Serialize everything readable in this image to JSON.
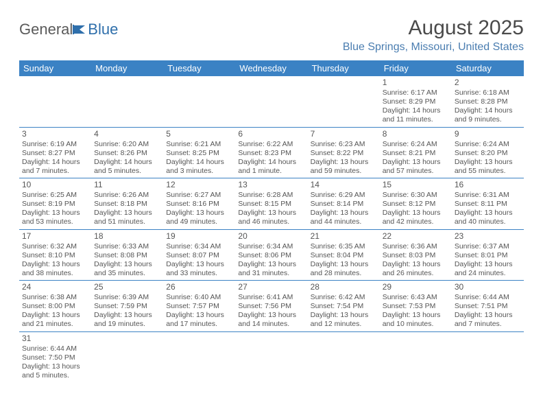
{
  "logo": {
    "general": "General",
    "blue": "Blue"
  },
  "header": {
    "month_title": "August 2025",
    "location": "Blue Springs, Missouri, United States"
  },
  "colors": {
    "header_bg": "#3b82c4",
    "header_text": "#ffffff",
    "grid_line": "#3b82c4",
    "body_text": "#555555",
    "location_text": "#4a7db0"
  },
  "day_headers": [
    "Sunday",
    "Monday",
    "Tuesday",
    "Wednesday",
    "Thursday",
    "Friday",
    "Saturday"
  ],
  "weeks": [
    [
      {
        "empty": true
      },
      {
        "empty": true
      },
      {
        "empty": true
      },
      {
        "empty": true
      },
      {
        "empty": true
      },
      {
        "num": "1",
        "sunrise": "Sunrise: 6:17 AM",
        "sunset": "Sunset: 8:29 PM",
        "daylight1": "Daylight: 14 hours",
        "daylight2": "and 11 minutes."
      },
      {
        "num": "2",
        "sunrise": "Sunrise: 6:18 AM",
        "sunset": "Sunset: 8:28 PM",
        "daylight1": "Daylight: 14 hours",
        "daylight2": "and 9 minutes."
      }
    ],
    [
      {
        "num": "3",
        "sunrise": "Sunrise: 6:19 AM",
        "sunset": "Sunset: 8:27 PM",
        "daylight1": "Daylight: 14 hours",
        "daylight2": "and 7 minutes."
      },
      {
        "num": "4",
        "sunrise": "Sunrise: 6:20 AM",
        "sunset": "Sunset: 8:26 PM",
        "daylight1": "Daylight: 14 hours",
        "daylight2": "and 5 minutes."
      },
      {
        "num": "5",
        "sunrise": "Sunrise: 6:21 AM",
        "sunset": "Sunset: 8:25 PM",
        "daylight1": "Daylight: 14 hours",
        "daylight2": "and 3 minutes."
      },
      {
        "num": "6",
        "sunrise": "Sunrise: 6:22 AM",
        "sunset": "Sunset: 8:23 PM",
        "daylight1": "Daylight: 14 hours",
        "daylight2": "and 1 minute."
      },
      {
        "num": "7",
        "sunrise": "Sunrise: 6:23 AM",
        "sunset": "Sunset: 8:22 PM",
        "daylight1": "Daylight: 13 hours",
        "daylight2": "and 59 minutes."
      },
      {
        "num": "8",
        "sunrise": "Sunrise: 6:24 AM",
        "sunset": "Sunset: 8:21 PM",
        "daylight1": "Daylight: 13 hours",
        "daylight2": "and 57 minutes."
      },
      {
        "num": "9",
        "sunrise": "Sunrise: 6:24 AM",
        "sunset": "Sunset: 8:20 PM",
        "daylight1": "Daylight: 13 hours",
        "daylight2": "and 55 minutes."
      }
    ],
    [
      {
        "num": "10",
        "sunrise": "Sunrise: 6:25 AM",
        "sunset": "Sunset: 8:19 PM",
        "daylight1": "Daylight: 13 hours",
        "daylight2": "and 53 minutes."
      },
      {
        "num": "11",
        "sunrise": "Sunrise: 6:26 AM",
        "sunset": "Sunset: 8:18 PM",
        "daylight1": "Daylight: 13 hours",
        "daylight2": "and 51 minutes."
      },
      {
        "num": "12",
        "sunrise": "Sunrise: 6:27 AM",
        "sunset": "Sunset: 8:16 PM",
        "daylight1": "Daylight: 13 hours",
        "daylight2": "and 49 minutes."
      },
      {
        "num": "13",
        "sunrise": "Sunrise: 6:28 AM",
        "sunset": "Sunset: 8:15 PM",
        "daylight1": "Daylight: 13 hours",
        "daylight2": "and 46 minutes."
      },
      {
        "num": "14",
        "sunrise": "Sunrise: 6:29 AM",
        "sunset": "Sunset: 8:14 PM",
        "daylight1": "Daylight: 13 hours",
        "daylight2": "and 44 minutes."
      },
      {
        "num": "15",
        "sunrise": "Sunrise: 6:30 AM",
        "sunset": "Sunset: 8:12 PM",
        "daylight1": "Daylight: 13 hours",
        "daylight2": "and 42 minutes."
      },
      {
        "num": "16",
        "sunrise": "Sunrise: 6:31 AM",
        "sunset": "Sunset: 8:11 PM",
        "daylight1": "Daylight: 13 hours",
        "daylight2": "and 40 minutes."
      }
    ],
    [
      {
        "num": "17",
        "sunrise": "Sunrise: 6:32 AM",
        "sunset": "Sunset: 8:10 PM",
        "daylight1": "Daylight: 13 hours",
        "daylight2": "and 38 minutes."
      },
      {
        "num": "18",
        "sunrise": "Sunrise: 6:33 AM",
        "sunset": "Sunset: 8:08 PM",
        "daylight1": "Daylight: 13 hours",
        "daylight2": "and 35 minutes."
      },
      {
        "num": "19",
        "sunrise": "Sunrise: 6:34 AM",
        "sunset": "Sunset: 8:07 PM",
        "daylight1": "Daylight: 13 hours",
        "daylight2": "and 33 minutes."
      },
      {
        "num": "20",
        "sunrise": "Sunrise: 6:34 AM",
        "sunset": "Sunset: 8:06 PM",
        "daylight1": "Daylight: 13 hours",
        "daylight2": "and 31 minutes."
      },
      {
        "num": "21",
        "sunrise": "Sunrise: 6:35 AM",
        "sunset": "Sunset: 8:04 PM",
        "daylight1": "Daylight: 13 hours",
        "daylight2": "and 28 minutes."
      },
      {
        "num": "22",
        "sunrise": "Sunrise: 6:36 AM",
        "sunset": "Sunset: 8:03 PM",
        "daylight1": "Daylight: 13 hours",
        "daylight2": "and 26 minutes."
      },
      {
        "num": "23",
        "sunrise": "Sunrise: 6:37 AM",
        "sunset": "Sunset: 8:01 PM",
        "daylight1": "Daylight: 13 hours",
        "daylight2": "and 24 minutes."
      }
    ],
    [
      {
        "num": "24",
        "sunrise": "Sunrise: 6:38 AM",
        "sunset": "Sunset: 8:00 PM",
        "daylight1": "Daylight: 13 hours",
        "daylight2": "and 21 minutes."
      },
      {
        "num": "25",
        "sunrise": "Sunrise: 6:39 AM",
        "sunset": "Sunset: 7:59 PM",
        "daylight1": "Daylight: 13 hours",
        "daylight2": "and 19 minutes."
      },
      {
        "num": "26",
        "sunrise": "Sunrise: 6:40 AM",
        "sunset": "Sunset: 7:57 PM",
        "daylight1": "Daylight: 13 hours",
        "daylight2": "and 17 minutes."
      },
      {
        "num": "27",
        "sunrise": "Sunrise: 6:41 AM",
        "sunset": "Sunset: 7:56 PM",
        "daylight1": "Daylight: 13 hours",
        "daylight2": "and 14 minutes."
      },
      {
        "num": "28",
        "sunrise": "Sunrise: 6:42 AM",
        "sunset": "Sunset: 7:54 PM",
        "daylight1": "Daylight: 13 hours",
        "daylight2": "and 12 minutes."
      },
      {
        "num": "29",
        "sunrise": "Sunrise: 6:43 AM",
        "sunset": "Sunset: 7:53 PM",
        "daylight1": "Daylight: 13 hours",
        "daylight2": "and 10 minutes."
      },
      {
        "num": "30",
        "sunrise": "Sunrise: 6:44 AM",
        "sunset": "Sunset: 7:51 PM",
        "daylight1": "Daylight: 13 hours",
        "daylight2": "and 7 minutes."
      }
    ],
    [
      {
        "num": "31",
        "sunrise": "Sunrise: 6:44 AM",
        "sunset": "Sunset: 7:50 PM",
        "daylight1": "Daylight: 13 hours",
        "daylight2": "and 5 minutes."
      },
      {
        "empty": true
      },
      {
        "empty": true
      },
      {
        "empty": true
      },
      {
        "empty": true
      },
      {
        "empty": true
      },
      {
        "empty": true
      }
    ]
  ]
}
